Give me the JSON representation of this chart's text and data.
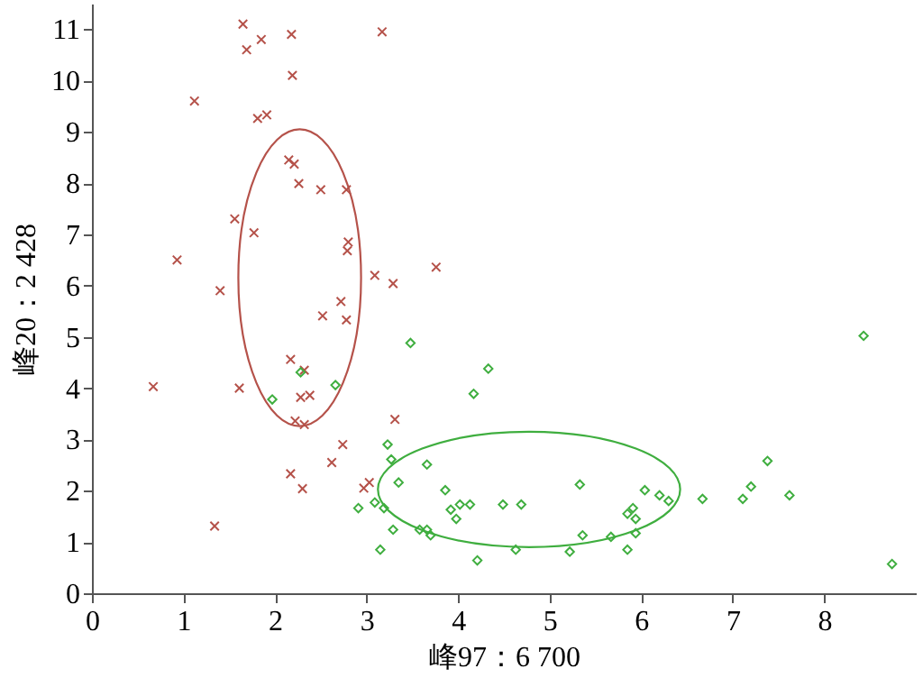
{
  "chart_data": {
    "type": "scatter",
    "xlabel": "峰97：6 700",
    "ylabel": "峰20：2 428",
    "xlim": [
      0,
      9
    ],
    "ylim": [
      0,
      11.5
    ],
    "xticks": [
      0,
      1,
      2,
      3,
      4,
      5,
      6,
      7,
      8
    ],
    "yticks": [
      0,
      1,
      2,
      3,
      4,
      5,
      6,
      7,
      8,
      9,
      10,
      11
    ],
    "grid": false,
    "series": [
      {
        "marker": "cross",
        "color": "#b5524a",
        "x": [
          1.65,
          1.85,
          2.18,
          1.69,
          2.19,
          1.12,
          1.81,
          1.91,
          2.15,
          2.21,
          2.26,
          2.5,
          2.78,
          1.56,
          1.77,
          0.93,
          2.8,
          2.79,
          3.09,
          1.4,
          2.72,
          3.17,
          3.29,
          3.76,
          2.78,
          3.31,
          2.74,
          3.03,
          2.97,
          2.52,
          2.17,
          2.32,
          0.67,
          1.61,
          2.28,
          2.38,
          2.22,
          2.32,
          2.62,
          2.17,
          2.3,
          1.34
        ],
        "values": [
          11.1,
          10.8,
          10.9,
          10.6,
          10.1,
          9.6,
          9.26,
          9.33,
          8.45,
          8.37,
          7.99,
          7.87,
          7.87,
          7.3,
          7.03,
          6.5,
          6.85,
          6.68,
          6.2,
          5.9,
          5.69,
          10.95,
          6.04,
          6.36,
          5.33,
          3.39,
          2.9,
          2.16,
          2.05,
          5.41,
          4.56,
          4.35,
          4.03,
          4.0,
          3.82,
          3.86,
          3.36,
          3.29,
          2.55,
          2.33,
          2.04,
          1.31
        ]
      },
      {
        "marker": "diamond",
        "color": "#3fae3f",
        "x": [
          2.28,
          2.66,
          1.97,
          2.91,
          3.09,
          3.48,
          4.33,
          4.17,
          3.23,
          3.27,
          3.66,
          3.35,
          3.19,
          3.29,
          3.15,
          3.58,
          3.66,
          3.7,
          3.86,
          3.92,
          4.02,
          4.13,
          3.98,
          4.21,
          4.49,
          4.69,
          4.63,
          5.22,
          5.33,
          5.36,
          5.67,
          5.85,
          5.85,
          5.91,
          5.94,
          5.94,
          6.04,
          6.2,
          6.3,
          6.67,
          7.11,
          7.2,
          7.38,
          7.62,
          8.43,
          8.74
        ],
        "values": [
          4.31,
          4.06,
          3.78,
          1.66,
          1.77,
          4.88,
          4.38,
          3.89,
          2.9,
          2.61,
          2.51,
          2.16,
          1.66,
          1.24,
          0.85,
          1.24,
          1.24,
          1.13,
          2.01,
          1.63,
          1.73,
          1.73,
          1.45,
          0.64,
          1.73,
          1.73,
          0.85,
          0.81,
          2.12,
          1.13,
          1.1,
          0.85,
          1.55,
          1.66,
          1.45,
          1.17,
          2.01,
          1.91,
          1.8,
          1.84,
          1.84,
          2.08,
          2.58,
          1.91,
          5.02,
          0.57
        ]
      }
    ]
  }
}
